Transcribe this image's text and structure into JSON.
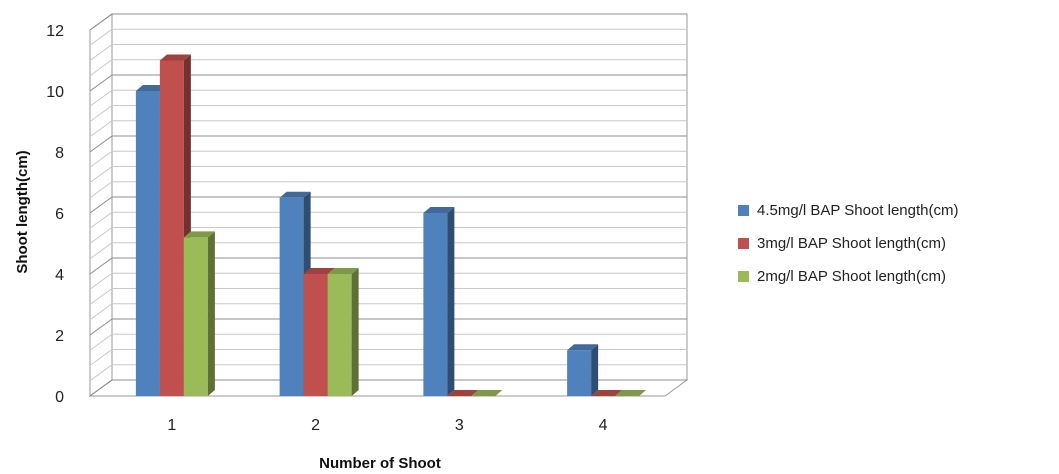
{
  "chart_data": {
    "type": "bar",
    "xlabel": "Number of  Shoot",
    "ylabel": "Shoot  length(cm)",
    "categories": [
      "1",
      "2",
      "3",
      "4"
    ],
    "ylim": [
      0,
      12
    ],
    "yticks": [
      0,
      2,
      4,
      6,
      8,
      10,
      12
    ],
    "grid": true,
    "legend_position": "right",
    "series": [
      {
        "name": "4.5mg/l BAP Shoot length(cm)",
        "values": [
          10,
          6.5,
          6,
          1.5
        ],
        "color": "#4f81bd"
      },
      {
        "name": "3mg/l BAP Shoot length(cm)",
        "values": [
          11,
          4,
          0,
          0
        ],
        "color": "#c0504d"
      },
      {
        "name": "2mg/l BAP Shoot length(cm)",
        "values": [
          5.2,
          4,
          0,
          0
        ],
        "color": "#9bbb59"
      }
    ]
  }
}
